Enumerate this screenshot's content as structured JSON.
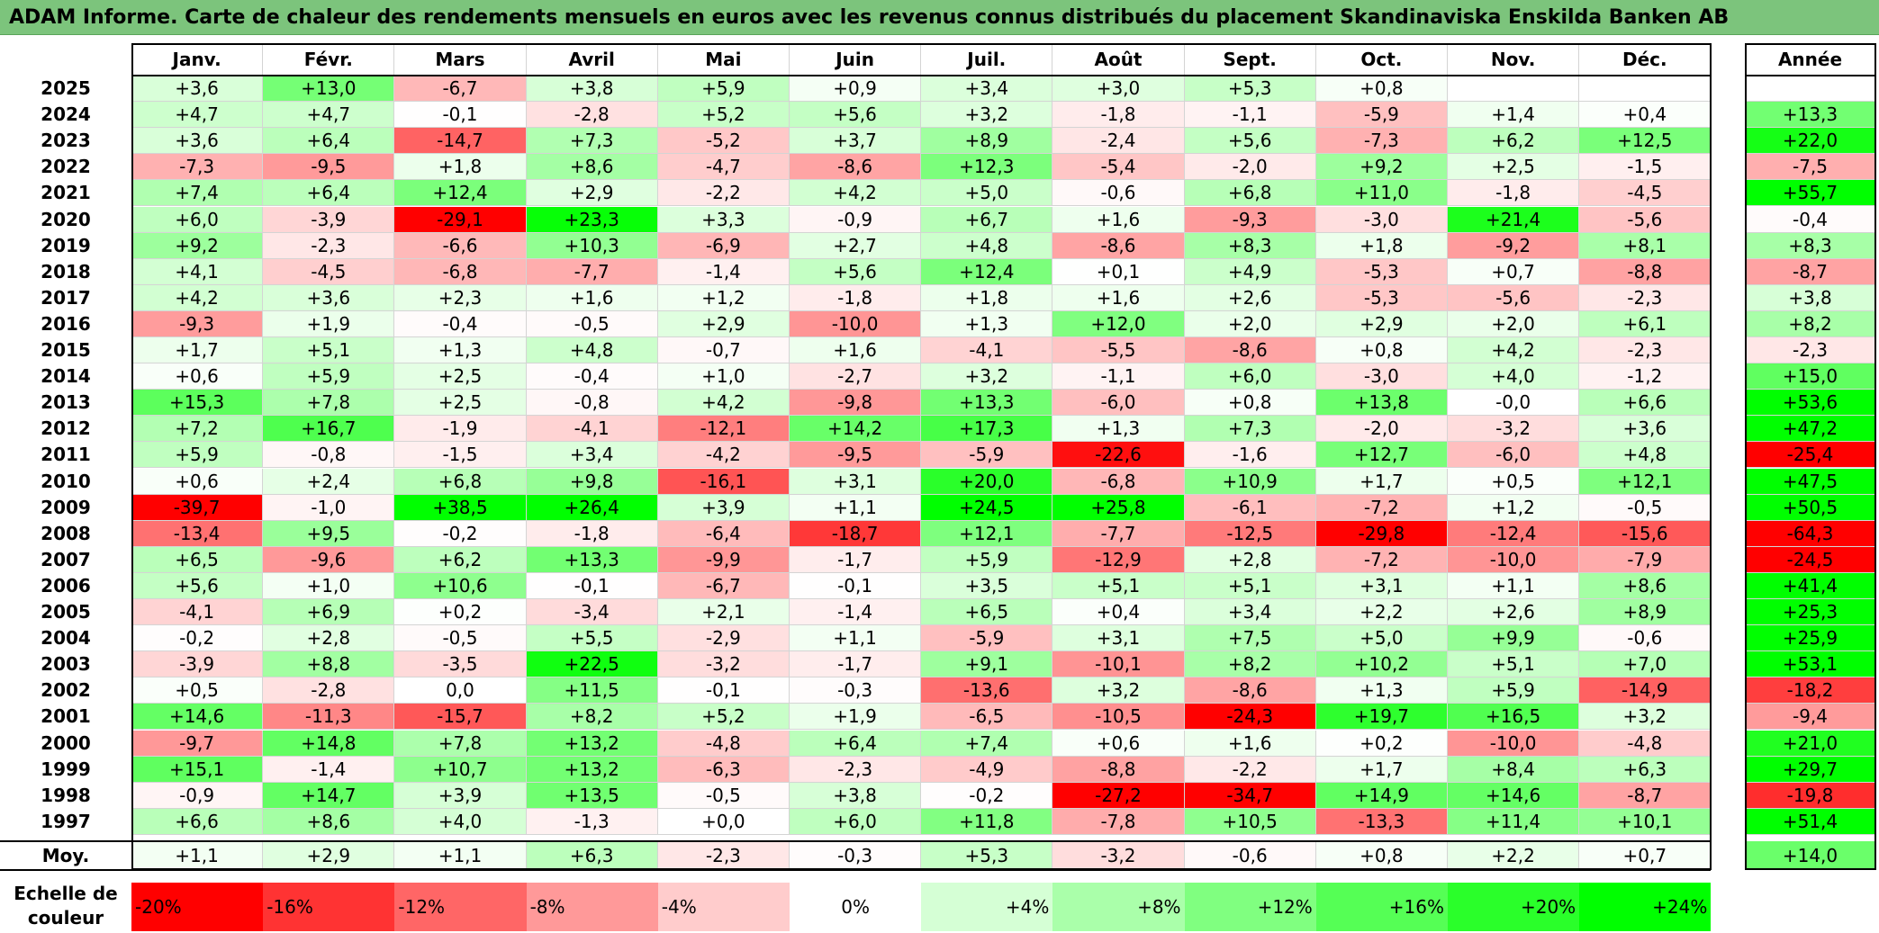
{
  "title": "ADAM Informe. Carte de chaleur des rendements mensuels en euros avec les revenus connus distribués du placement Skandinaviska Enskilda Banken AB",
  "chart_data": {
    "type": "heatmap",
    "months": [
      "Janv.",
      "Févr.",
      "Mars",
      "Avril",
      "Mai",
      "Juin",
      "Juil.",
      "Août",
      "Sept.",
      "Oct.",
      "Nov.",
      "Déc."
    ],
    "year_header": "Année",
    "rows": [
      {
        "year": "2025",
        "months": [
          "+3,6",
          "+13,0",
          "-6,7",
          "+3,8",
          "+5,9",
          "+0,9",
          "+3,4",
          "+3,0",
          "+5,3",
          "+0,8",
          "",
          ""
        ],
        "annual": ""
      },
      {
        "year": "2024",
        "months": [
          "+4,7",
          "+4,7",
          "-0,1",
          "-2,8",
          "+5,2",
          "+5,6",
          "+3,2",
          "-1,8",
          "-1,1",
          "-5,9",
          "+1,4",
          "+0,4"
        ],
        "annual": "+13,3"
      },
      {
        "year": "2023",
        "months": [
          "+3,6",
          "+6,4",
          "-14,7",
          "+7,3",
          "-5,2",
          "+3,7",
          "+8,9",
          "-2,4",
          "+5,6",
          "-7,3",
          "+6,2",
          "+12,5"
        ],
        "annual": "+22,0"
      },
      {
        "year": "2022",
        "months": [
          "-7,3",
          "-9,5",
          "+1,8",
          "+8,6",
          "-4,7",
          "-8,6",
          "+12,3",
          "-5,4",
          "-2,0",
          "+9,2",
          "+2,5",
          "-1,5"
        ],
        "annual": "-7,5"
      },
      {
        "year": "2021",
        "months": [
          "+7,4",
          "+6,4",
          "+12,4",
          "+2,9",
          "-2,2",
          "+4,2",
          "+5,0",
          "-0,6",
          "+6,8",
          "+11,0",
          "-1,8",
          "-4,5"
        ],
        "annual": "+55,7"
      },
      {
        "year": "2020",
        "months": [
          "+6,0",
          "-3,9",
          "-29,1",
          "+23,3",
          "+3,3",
          "-0,9",
          "+6,7",
          "+1,6",
          "-9,3",
          "-3,0",
          "+21,4",
          "-5,6"
        ],
        "annual": "-0,4"
      },
      {
        "year": "2019",
        "months": [
          "+9,2",
          "-2,3",
          "-6,6",
          "+10,3",
          "-6,9",
          "+2,7",
          "+4,8",
          "-8,6",
          "+8,3",
          "+1,8",
          "-9,2",
          "+8,1"
        ],
        "annual": "+8,3"
      },
      {
        "year": "2018",
        "months": [
          "+4,1",
          "-4,5",
          "-6,8",
          "-7,7",
          "-1,4",
          "+5,6",
          "+12,4",
          "+0,1",
          "+4,9",
          "-5,3",
          "+0,7",
          "-8,8"
        ],
        "annual": "-8,7"
      },
      {
        "year": "2017",
        "months": [
          "+4,2",
          "+3,6",
          "+2,3",
          "+1,6",
          "+1,2",
          "-1,8",
          "+1,8",
          "+1,6",
          "+2,6",
          "-5,3",
          "-5,6",
          "-2,3"
        ],
        "annual": "+3,8"
      },
      {
        "year": "2016",
        "months": [
          "-9,3",
          "+1,9",
          "-0,4",
          "-0,5",
          "+2,9",
          "-10,0",
          "+1,3",
          "+12,0",
          "+2,0",
          "+2,9",
          "+2,0",
          "+6,1"
        ],
        "annual": "+8,2"
      },
      {
        "year": "2015",
        "months": [
          "+1,7",
          "+5,1",
          "+1,3",
          "+4,8",
          "-0,7",
          "+1,6",
          "-4,1",
          "-5,5",
          "-8,6",
          "+0,8",
          "+4,2",
          "-2,3"
        ],
        "annual": "-2,3"
      },
      {
        "year": "2014",
        "months": [
          "+0,6",
          "+5,9",
          "+2,5",
          "-0,4",
          "+1,0",
          "-2,7",
          "+3,2",
          "-1,1",
          "+6,0",
          "-3,0",
          "+4,0",
          "-1,2"
        ],
        "annual": "+15,0"
      },
      {
        "year": "2013",
        "months": [
          "+15,3",
          "+7,8",
          "+2,5",
          "-0,8",
          "+4,2",
          "-9,8",
          "+13,3",
          "-6,0",
          "+0,8",
          "+13,8",
          "-0,0",
          "+6,6"
        ],
        "annual": "+53,6"
      },
      {
        "year": "2012",
        "months": [
          "+7,2",
          "+16,7",
          "-1,9",
          "-4,1",
          "-12,1",
          "+14,2",
          "+17,3",
          "+1,3",
          "+7,3",
          "-2,0",
          "-3,2",
          "+3,6"
        ],
        "annual": "+47,2"
      },
      {
        "year": "2011",
        "months": [
          "+5,9",
          "-0,8",
          "-1,5",
          "+3,4",
          "-4,2",
          "-9,5",
          "-5,9",
          "-22,6",
          "-1,6",
          "+12,7",
          "-6,0",
          "+4,8"
        ],
        "annual": "-25,4"
      },
      {
        "year": "2010",
        "months": [
          "+0,6",
          "+2,4",
          "+6,8",
          "+9,8",
          "-16,1",
          "+3,1",
          "+20,0",
          "-6,8",
          "+10,9",
          "+1,7",
          "+0,5",
          "+12,1"
        ],
        "annual": "+47,5"
      },
      {
        "year": "2009",
        "months": [
          "-39,7",
          "-1,0",
          "+38,5",
          "+26,4",
          "+3,9",
          "+1,1",
          "+24,5",
          "+25,8",
          "-6,1",
          "-7,2",
          "+1,2",
          "-0,5"
        ],
        "annual": "+50,5"
      },
      {
        "year": "2008",
        "months": [
          "-13,4",
          "+9,5",
          "-0,2",
          "-1,8",
          "-6,4",
          "-18,7",
          "+12,1",
          "-7,7",
          "-12,5",
          "-29,8",
          "-12,4",
          "-15,6"
        ],
        "annual": "-64,3"
      },
      {
        "year": "2007",
        "months": [
          "+6,5",
          "-9,6",
          "+6,2",
          "+13,3",
          "-9,9",
          "-1,7",
          "+5,9",
          "-12,9",
          "+2,8",
          "-7,2",
          "-10,0",
          "-7,9"
        ],
        "annual": "-24,5"
      },
      {
        "year": "2006",
        "months": [
          "+5,6",
          "+1,0",
          "+10,6",
          "-0,1",
          "-6,7",
          "-0,1",
          "+3,5",
          "+5,1",
          "+5,1",
          "+3,1",
          "+1,1",
          "+8,6"
        ],
        "annual": "+41,4"
      },
      {
        "year": "2005",
        "months": [
          "-4,1",
          "+6,9",
          "+0,2",
          "-3,4",
          "+2,1",
          "-1,4",
          "+6,5",
          "+0,4",
          "+3,4",
          "+2,2",
          "+2,6",
          "+8,9"
        ],
        "annual": "+25,3"
      },
      {
        "year": "2004",
        "months": [
          "-0,2",
          "+2,8",
          "-0,5",
          "+5,5",
          "-2,9",
          "+1,1",
          "-5,9",
          "+3,1",
          "+7,5",
          "+5,0",
          "+9,9",
          "-0,6"
        ],
        "annual": "+25,9"
      },
      {
        "year": "2003",
        "months": [
          "-3,9",
          "+8,8",
          "-3,5",
          "+22,5",
          "-3,2",
          "-1,7",
          "+9,1",
          "-10,1",
          "+8,2",
          "+10,2",
          "+5,1",
          "+7,0"
        ],
        "annual": "+53,1"
      },
      {
        "year": "2002",
        "months": [
          "+0,5",
          "-2,8",
          "0,0",
          "+11,5",
          "-0,1",
          "-0,3",
          "-13,6",
          "+3,2",
          "-8,6",
          "+1,3",
          "+5,9",
          "-14,9"
        ],
        "annual": "-18,2"
      },
      {
        "year": "2001",
        "months": [
          "+14,6",
          "-11,3",
          "-15,7",
          "+8,2",
          "+5,2",
          "+1,9",
          "-6,5",
          "-10,5",
          "-24,3",
          "+19,7",
          "+16,5",
          "+3,2"
        ],
        "annual": "-9,4"
      },
      {
        "year": "2000",
        "months": [
          "-9,7",
          "+14,8",
          "+7,8",
          "+13,2",
          "-4,8",
          "+6,4",
          "+7,4",
          "+0,6",
          "+1,6",
          "+0,2",
          "-10,0",
          "-4,8"
        ],
        "annual": "+21,0"
      },
      {
        "year": "1999",
        "months": [
          "+15,1",
          "-1,4",
          "+10,7",
          "+13,2",
          "-6,3",
          "-2,3",
          "-4,9",
          "-8,8",
          "-2,2",
          "+1,7",
          "+8,4",
          "+6,3"
        ],
        "annual": "+29,7"
      },
      {
        "year": "1998",
        "months": [
          "-0,9",
          "+14,7",
          "+3,9",
          "+13,5",
          "-0,5",
          "+3,8",
          "-0,2",
          "-27,2",
          "-34,7",
          "+14,9",
          "+14,6",
          "-8,7"
        ],
        "annual": "-19,8"
      },
      {
        "year": "1997",
        "months": [
          "+6,6",
          "+8,6",
          "+4,0",
          "-1,3",
          "+0,0",
          "+6,0",
          "+11,8",
          "-7,8",
          "+10,5",
          "-13,3",
          "+11,4",
          "+10,1"
        ],
        "annual": "+51,4"
      }
    ],
    "average": {
      "label": "Moy.",
      "months": [
        "+1,1",
        "+2,9",
        "+1,1",
        "+6,3",
        "-2,3",
        "-0,3",
        "+5,3",
        "-3,2",
        "-0,6",
        "+0,8",
        "+2,2",
        "+0,7"
      ],
      "annual": "+14,0"
    },
    "color_scale": {
      "label": "Echelle de couleur",
      "stops": [
        {
          "label": "-20%",
          "value": -20,
          "color": "#ff0000"
        },
        {
          "label": "-16%",
          "value": -16,
          "color": "#ff3333"
        },
        {
          "label": "-12%",
          "value": -12,
          "color": "#ff6666"
        },
        {
          "label": "-8%",
          "value": -8,
          "color": "#ff9999"
        },
        {
          "label": "-4%",
          "value": -4,
          "color": "#ffcccc"
        },
        {
          "label": "0%",
          "value": 0,
          "color": "#ffffff"
        },
        {
          "label": "+4%",
          "value": 4,
          "color": "#d5ffd5"
        },
        {
          "label": "+8%",
          "value": 8,
          "color": "#aaffaa"
        },
        {
          "label": "+12%",
          "value": 12,
          "color": "#80ff80"
        },
        {
          "label": "+16%",
          "value": 16,
          "color": "#55ff55"
        },
        {
          "label": "+20%",
          "value": 20,
          "color": "#2aff2a"
        },
        {
          "label": "+24%",
          "value": 24,
          "color": "#00ff00"
        }
      ]
    }
  }
}
